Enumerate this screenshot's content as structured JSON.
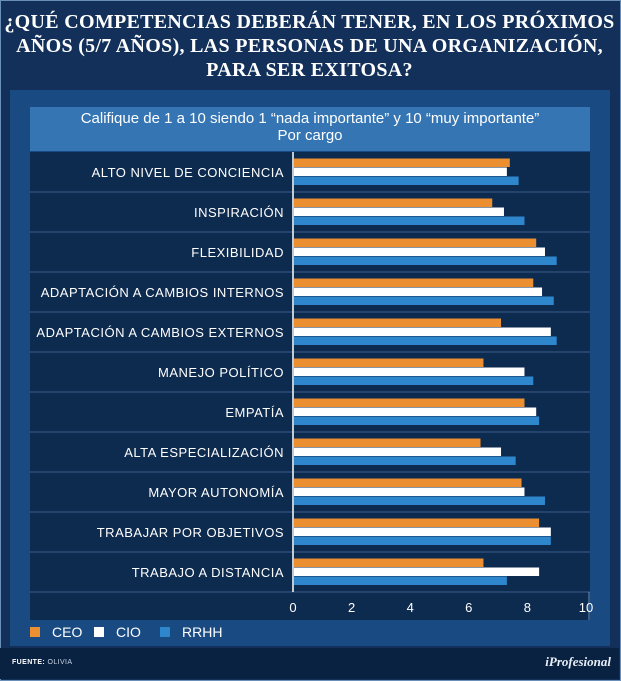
{
  "title_lines": [
    "¿QUÉ COMPETENCIAS DEBERÁN TENER, EN LOS PRÓXIMOS",
    "AÑOS (5/7 AÑOS), LAS PERSONAS DE UNA ORGANIZACIÓN,",
    "PARA SER EXITOSA?"
  ],
  "subtitle_lines": [
    "Califique de 1 a 10 siendo 1 “nada importante” y 10 “muy importante”",
    "Por cargo"
  ],
  "footer": {
    "source_label": "FUENTE:",
    "source_value": "OLIVIA",
    "brand": "iProfesional"
  },
  "colors": {
    "CEO": "#ec8f30",
    "CIO": "#ffffff",
    "RRHH": "#2e86cc",
    "background": "#12305a",
    "panel": "#1a4a82",
    "plot": "#0d2a4f"
  },
  "chart_data": {
    "type": "bar",
    "orientation": "horizontal",
    "title": "¿QUÉ COMPETENCIAS DEBERÁN TENER, EN LOS PRÓXIMOS AÑOS (5/7 AÑOS), LAS PERSONAS DE UNA ORGANIZACIÓN, PARA SER EXITOSA?",
    "subtitle": "Califique de 1 a 10 siendo 1 “nada importante” y 10 “muy importante” Por cargo",
    "categories": [
      "ALTO NIVEL DE CONCIENCIA",
      "INSPIRACIÓN",
      "FLEXIBILIDAD",
      "ADAPTACIÓN A CAMBIOS INTERNOS",
      "ADAPTACIÓN A CAMBIOS EXTERNOS",
      "MANEJO POLÍTICO",
      "EMPATÍA",
      "ALTA ESPECIALIZACIÓN",
      "MAYOR AUTONOMÍA",
      "TRABAJAR POR OBJETIVOS",
      "TRABAJO A DISTANCIA"
    ],
    "series": [
      {
        "name": "CEO",
        "values": [
          7.4,
          6.8,
          8.3,
          8.2,
          7.1,
          6.5,
          7.9,
          6.4,
          7.8,
          8.4,
          6.5
        ]
      },
      {
        "name": "CIO",
        "values": [
          7.3,
          7.2,
          8.6,
          8.5,
          8.8,
          7.9,
          8.3,
          7.1,
          7.9,
          8.8,
          8.4
        ]
      },
      {
        "name": "RRHH",
        "values": [
          7.7,
          7.9,
          9.0,
          8.9,
          9.0,
          8.2,
          8.4,
          7.6,
          8.6,
          8.8,
          7.3
        ]
      }
    ],
    "xlim": [
      0,
      10
    ],
    "xticks": [
      "0",
      "2",
      "4",
      "6",
      "8",
      "10"
    ],
    "xlabel": "",
    "ylabel": "",
    "legend": {
      "position": "bottom-left",
      "entries": [
        "CEO",
        "CIO",
        "RRHH"
      ]
    },
    "grid": "horizontal separators"
  }
}
